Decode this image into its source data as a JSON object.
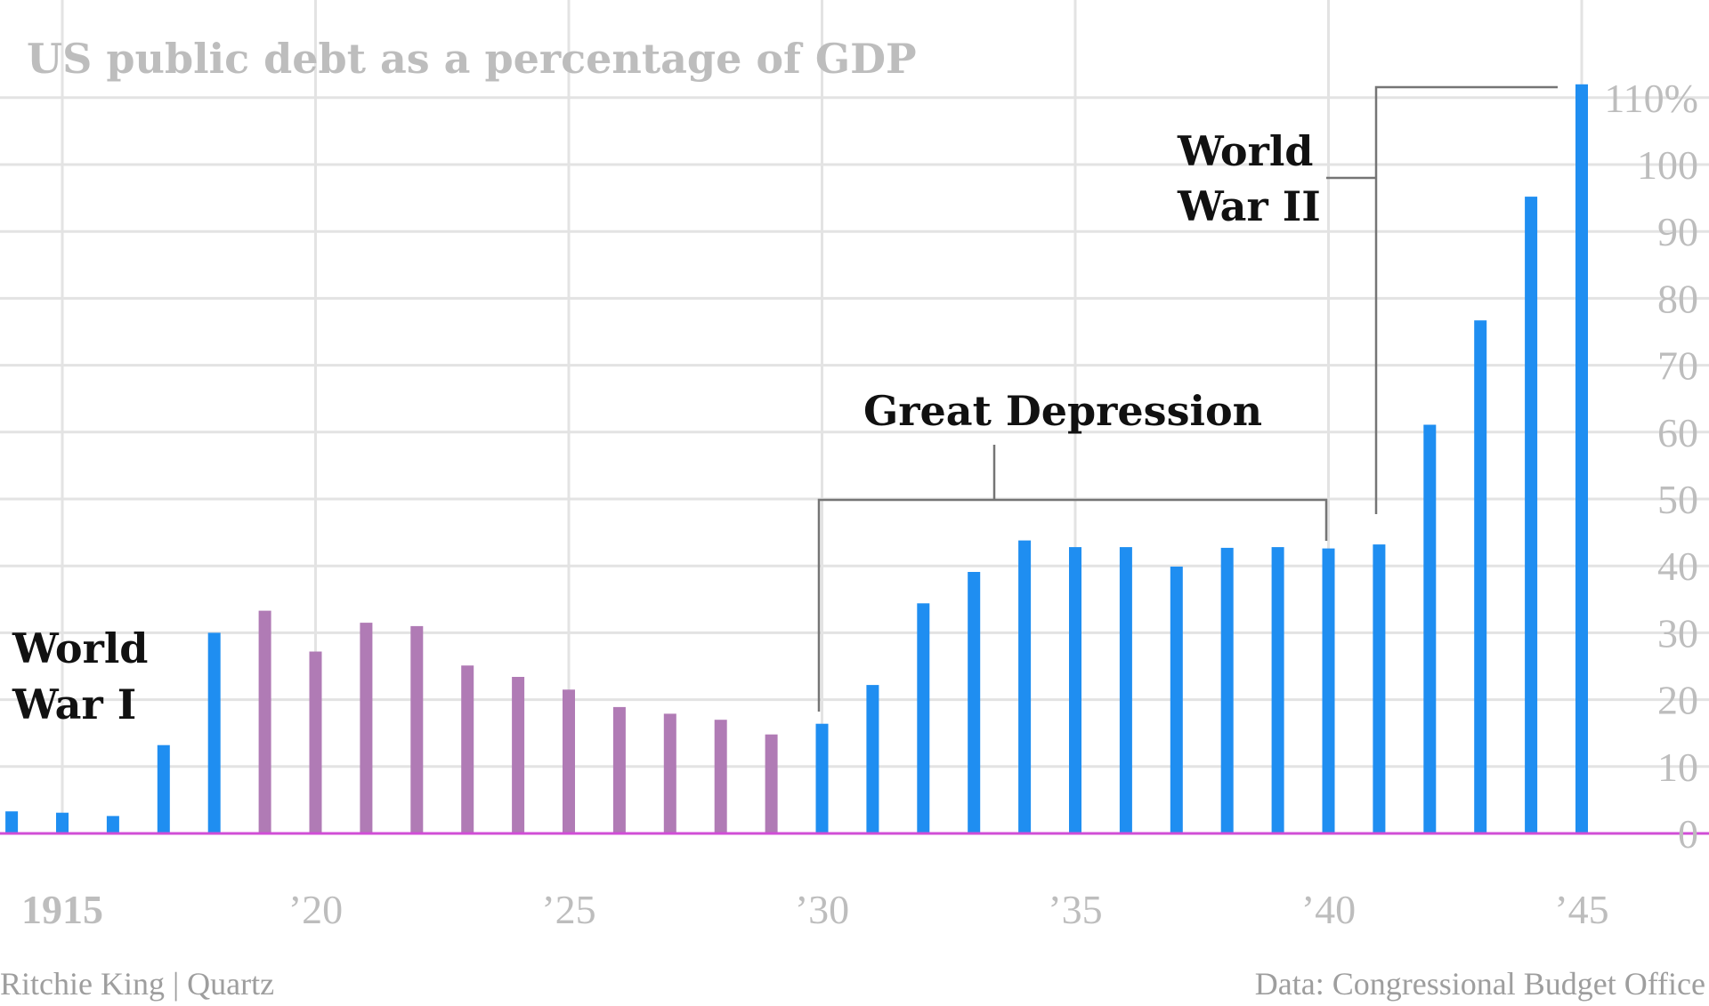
{
  "chart_data": {
    "type": "bar",
    "title": "US public debt as a percentage of GDP",
    "x": [
      1914,
      1915,
      1916,
      1917,
      1918,
      1919,
      1920,
      1921,
      1922,
      1923,
      1924,
      1925,
      1926,
      1927,
      1928,
      1929,
      1930,
      1931,
      1932,
      1933,
      1934,
      1935,
      1936,
      1937,
      1938,
      1939,
      1940,
      1941,
      1942,
      1943,
      1944,
      1945
    ],
    "values": [
      3.3,
      3.1,
      2.6,
      13.2,
      30.0,
      33.3,
      27.2,
      31.5,
      31.0,
      25.1,
      23.4,
      21.5,
      18.9,
      17.9,
      17.0,
      14.8,
      16.4,
      22.2,
      34.4,
      39.1,
      43.8,
      42.8,
      42.8,
      39.9,
      42.7,
      42.8,
      42.6,
      43.2,
      61.1,
      76.7,
      95.2,
      112.0
    ],
    "bar_colors": {
      "default": "#1f8ef1",
      "interwar": "#b07bb5",
      "interwar_years": [
        1919,
        1920,
        1921,
        1922,
        1923,
        1924,
        1925,
        1926,
        1927,
        1928,
        1929
      ]
    },
    "ylim": [
      0,
      112
    ],
    "y_ticks": [
      0,
      10,
      20,
      30,
      40,
      50,
      60,
      70,
      80,
      90,
      100,
      110
    ],
    "y_tick_labels": [
      "0",
      "10",
      "20",
      "30",
      "40",
      "50",
      "60",
      "70",
      "80",
      "90",
      "100",
      "110%"
    ],
    "x_ticks": [
      1915,
      1920,
      1925,
      1930,
      1935,
      1940,
      1945
    ],
    "x_tick_labels": [
      "1915",
      "’20",
      "’25",
      "’30",
      "’35",
      "’40",
      "’45"
    ],
    "xlabel": "",
    "ylabel": "",
    "grid": true,
    "baseline_color": "#d04ed6",
    "annotations": [
      {
        "name": "world-war-1",
        "lines": [
          "World",
          "War I"
        ]
      },
      {
        "name": "great-depression",
        "lines": [
          "Great Depression"
        ],
        "span": [
          1930,
          1940
        ]
      },
      {
        "name": "world-war-2",
        "lines": [
          "World",
          "War II"
        ],
        "span": [
          1941,
          1945
        ]
      }
    ]
  },
  "footer": {
    "credit_left": "Ritchie King | Quartz",
    "credit_right": "Data: Congressional Budget Office"
  }
}
